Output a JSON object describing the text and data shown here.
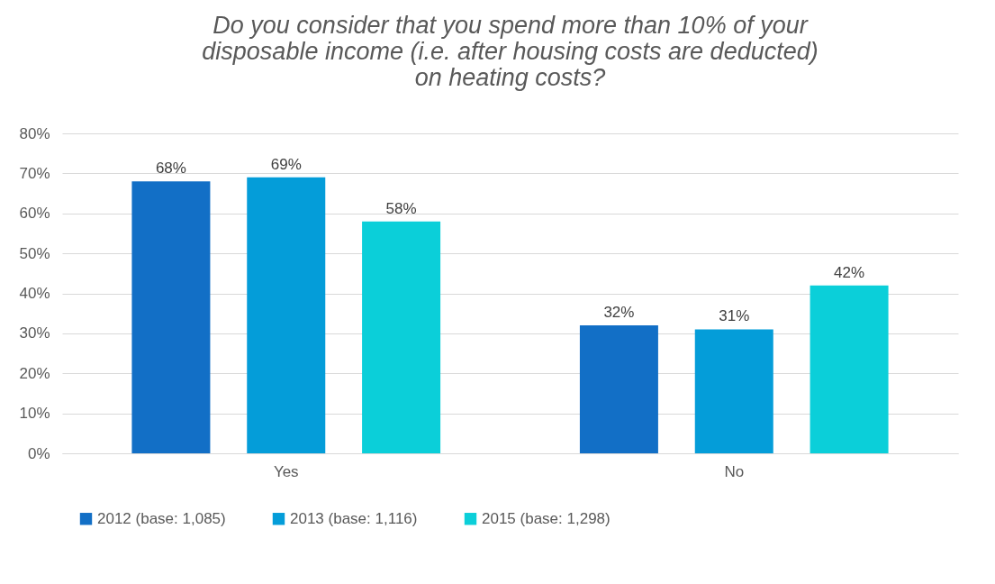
{
  "chart_data": {
    "type": "bar",
    "title": [
      "Do you consider that you spend more than 10% of your",
      "disposable income (i.e. after housing costs are deducted)",
      "on heating costs?"
    ],
    "categories": [
      "Yes",
      "No"
    ],
    "series": [
      {
        "name": "2012 (base: 1,085)",
        "color": "#126fc6",
        "values": [
          68,
          32
        ],
        "value_labels": [
          "68%",
          "32%"
        ]
      },
      {
        "name": "2013 (base: 1,116)",
        "color": "#049dd9",
        "values": [
          69,
          31
        ],
        "value_labels": [
          "69%",
          "31%"
        ]
      },
      {
        "name": "2015 (base: 1,298)",
        "color": "#0bcfd9",
        "values": [
          58,
          42
        ],
        "value_labels": [
          "58%",
          "42%"
        ]
      }
    ],
    "ylim": [
      0,
      80
    ],
    "yticks": [
      {
        "value": 0,
        "label": "0%"
      },
      {
        "value": 10,
        "label": "10%"
      },
      {
        "value": 20,
        "label": "20%"
      },
      {
        "value": 30,
        "label": "30%"
      },
      {
        "value": 40,
        "label": "40%"
      },
      {
        "value": 50,
        "label": "50%"
      },
      {
        "value": 60,
        "label": "60%"
      },
      {
        "value": 70,
        "label": "70%"
      },
      {
        "value": 80,
        "label": "80%"
      }
    ],
    "grid": "y",
    "legend": "bottom"
  }
}
